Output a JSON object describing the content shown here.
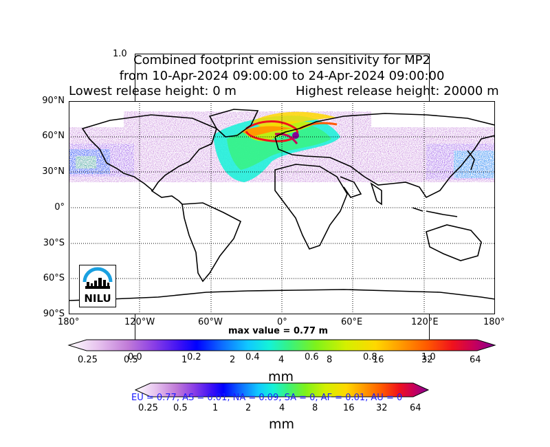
{
  "ghost_axis_label": "1.0",
  "title": {
    "line1": "Combined footprint emission sensitivity for MP2",
    "line2": "from 10-Apr-2024 09:00:00 to 24-Apr-2024 09:00:00",
    "line3_left": "Lowest release height: 0 m",
    "line3_right": "Highest release height: 20000 m"
  },
  "map": {
    "lat_labels": [
      "90°N",
      "60°N",
      "30°N",
      "0°",
      "30°S",
      "60°S",
      "90°S"
    ],
    "lon_labels": [
      "180°",
      "120°W",
      "60°W",
      "0°",
      "60°E",
      "120°E",
      "180°"
    ],
    "max_value": "max value = 0.77 m",
    "logo_text": "NILU"
  },
  "colorbar_main": {
    "ticks": [
      "0.25",
      "0.5",
      "1",
      "2",
      "4",
      "8",
      "16",
      "32",
      "64"
    ],
    "unit": "mm"
  },
  "ghost_axis_ticks": [
    "0.0",
    "0.2",
    "0.4",
    "0.6",
    "0.8",
    "1.0"
  ],
  "colorbar_second": {
    "ticks": [
      "0.25",
      "0.5",
      "1",
      "2",
      "4",
      "8",
      "16",
      "32",
      "64"
    ],
    "unit": "mm"
  },
  "stats_line": "EU = 0.77,  AS = 0.01,  NA = 0.09,  SA = 0,  AF = 0.01,  AU = 0",
  "colors": {
    "colormap": [
      "#ffffff",
      "#e6c2ee",
      "#c07ad8",
      "#8a3ee6",
      "#3d10f5",
      "#0000ff",
      "#0d6cff",
      "#10c8ff",
      "#14f2d8",
      "#3af27c",
      "#7ef21a",
      "#d4f000",
      "#ffd800",
      "#ff9a00",
      "#ff5a00",
      "#f0121c",
      "#c8005a",
      "#860096"
    ],
    "grid": "#000000",
    "stats_text": "#1a1aff"
  }
}
